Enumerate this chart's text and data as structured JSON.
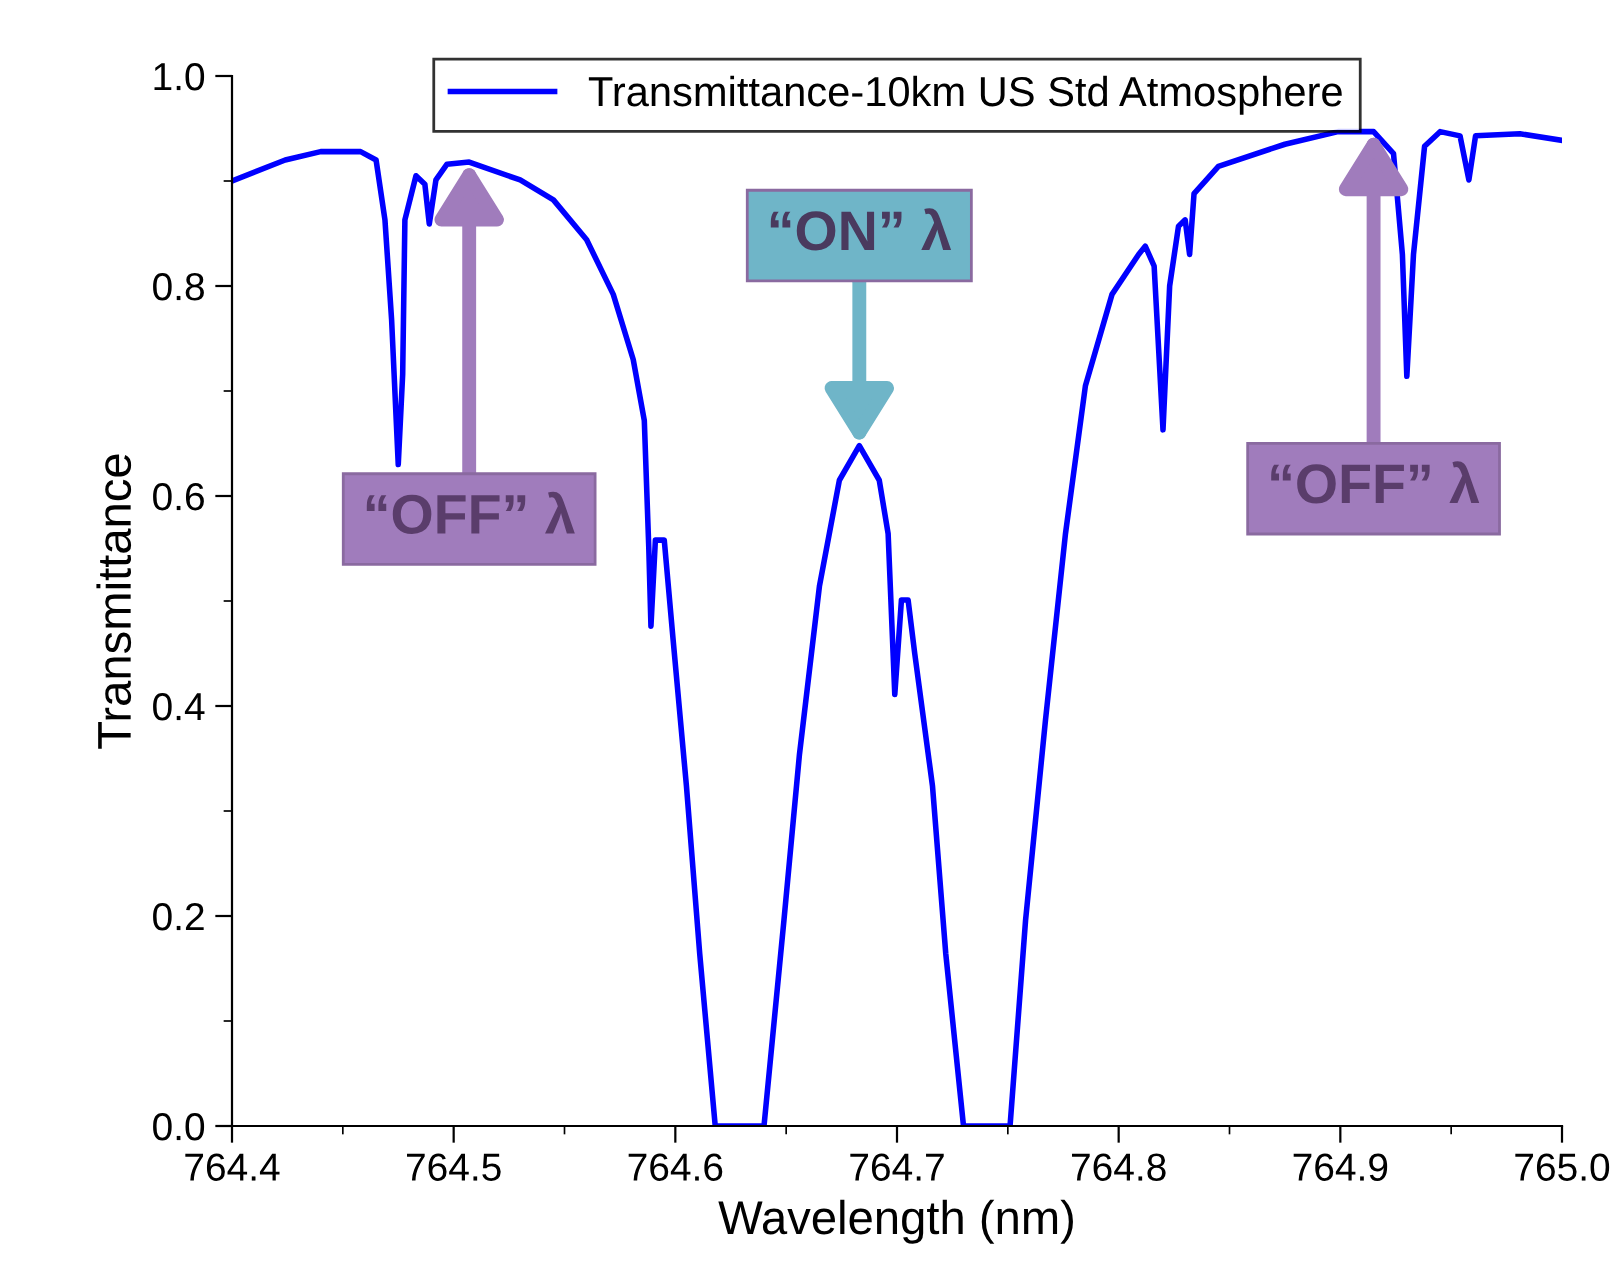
{
  "chart_data": {
    "type": "line",
    "xlabel": "Wavelength (nm)",
    "ylabel": "Transmittance",
    "xlim": [
      764.4,
      765.0
    ],
    "xticks": [
      764.4,
      764.5,
      764.6,
      764.7,
      764.8,
      764.9,
      {
        "value": 765,
        "label": "765.0"
      }
    ],
    "ylim": [
      0.0,
      1.0
    ],
    "yticks": [
      {
        "value": 0,
        "label": "0.0"
      },
      0.2,
      0.4,
      0.6,
      0.8,
      {
        "value": 1,
        "label": "1.0"
      }
    ],
    "legend": "top",
    "grid": false,
    "marker": "none",
    "line_style": "solid",
    "series": [
      {
        "name": "Transmittance-10km US Std Atmosphere",
        "color": "#0000ff",
        "x": [
          764.4,
          764.424,
          764.44,
          764.458,
          764.465,
          764.469,
          764.472,
          764.475,
          764.477,
          764.478,
          764.483,
          764.487,
          764.489,
          764.492,
          764.497,
          764.507,
          764.53,
          764.545,
          764.56,
          764.572,
          764.581,
          764.586,
          764.588,
          764.589,
          764.591,
          764.595,
          764.599,
          764.605,
          764.611,
          764.618,
          764.64,
          764.649,
          764.656,
          764.665,
          764.674,
          764.683,
          764.692,
          764.696,
          764.699,
          764.702,
          764.705,
          764.708,
          764.716,
          764.722,
          764.73,
          764.751,
          764.758,
          764.767,
          764.776,
          764.785,
          764.797,
          764.809,
          764.812,
          764.816,
          764.82,
          764.823,
          764.827,
          764.83,
          764.832,
          764.834,
          764.845,
          764.875,
          764.899,
          764.915,
          764.924,
          764.928,
          764.93,
          764.933,
          764.938,
          764.945,
          764.954,
          764.958,
          764.961,
          764.981,
          764.999
        ],
        "values": [
          0.9,
          0.92,
          0.928,
          0.928,
          0.92,
          0.863,
          0.768,
          0.63,
          0.716,
          0.863,
          0.905,
          0.897,
          0.859,
          0.901,
          0.916,
          0.918,
          0.901,
          0.882,
          0.844,
          0.792,
          0.73,
          0.672,
          0.552,
          0.476,
          0.558,
          0.558,
          0.463,
          0.324,
          0.164,
          0.0,
          0.0,
          0.196,
          0.354,
          0.514,
          0.615,
          0.648,
          0.615,
          0.564,
          0.411,
          0.501,
          0.501,
          0.45,
          0.324,
          0.164,
          0.0,
          0.0,
          0.196,
          0.387,
          0.564,
          0.705,
          0.792,
          0.83,
          0.838,
          0.819,
          0.663,
          0.8,
          0.857,
          0.863,
          0.83,
          0.888,
          0.914,
          0.935,
          0.947,
          0.947,
          0.926,
          0.83,
          0.714,
          0.83,
          0.933,
          0.947,
          0.943,
          0.901,
          0.943,
          0.945,
          0.939
        ]
      }
    ],
    "annotations": [
      {
        "text": "“OFF” λ",
        "x": 764.507,
        "y": 0.918
      },
      {
        "text": "“ON” λ",
        "x": 764.683,
        "y": 0.648
      },
      {
        "text": "“OFF” λ",
        "x": 764.915,
        "y": 0.947
      }
    ]
  }
}
